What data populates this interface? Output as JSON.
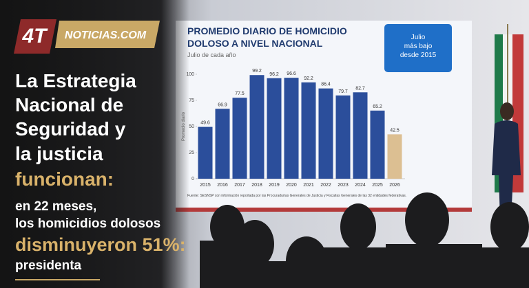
{
  "logo": {
    "mark": "4T",
    "site": "NOTICIAS.COM"
  },
  "headline": {
    "lines": [
      "La Estrategia",
      "Nacional de",
      "Seguridad y",
      "la justicia",
      "funcionan:",
      "en 22 meses,",
      "los homicidios dolosos",
      "disminuyeron 51%:",
      "presidenta"
    ]
  },
  "chart_data": {
    "type": "bar",
    "title": [
      "PROMEDIO DIARIO DE HOMICIDIO",
      "DOLOSO A NIVEL NACIONAL"
    ],
    "subtitle": "Julio de cada año",
    "badge": [
      "Julio",
      "más bajo",
      "desde 2015"
    ],
    "y_label": "Promedio diario",
    "source": "Fuente: SESNSP con información reportada por las Procuradurías Generales de Justicia y Fiscalías Generales de las 32 entidades federativas.",
    "categories": [
      "2015",
      "2016",
      "2017",
      "2018",
      "2019",
      "2020",
      "2021",
      "2022",
      "2023",
      "2024",
      "2025",
      "2026"
    ],
    "values": [
      49.6,
      66.9,
      77.5,
      99.2,
      96.2,
      96.6,
      92.2,
      86.4,
      79.7,
      82.7,
      65.2,
      42.5
    ],
    "colors": [
      "#2b4e9b",
      "#2b4e9b",
      "#2b4e9b",
      "#2b4e9b",
      "#2b4e9b",
      "#2b4e9b",
      "#2b4e9b",
      "#2b4e9b",
      "#2b4e9b",
      "#2b4e9b",
      "#2b4e9b",
      "#dcbf92"
    ],
    "ylim": [
      0,
      100
    ],
    "yticks": [
      0,
      25,
      50,
      75,
      100
    ]
  }
}
